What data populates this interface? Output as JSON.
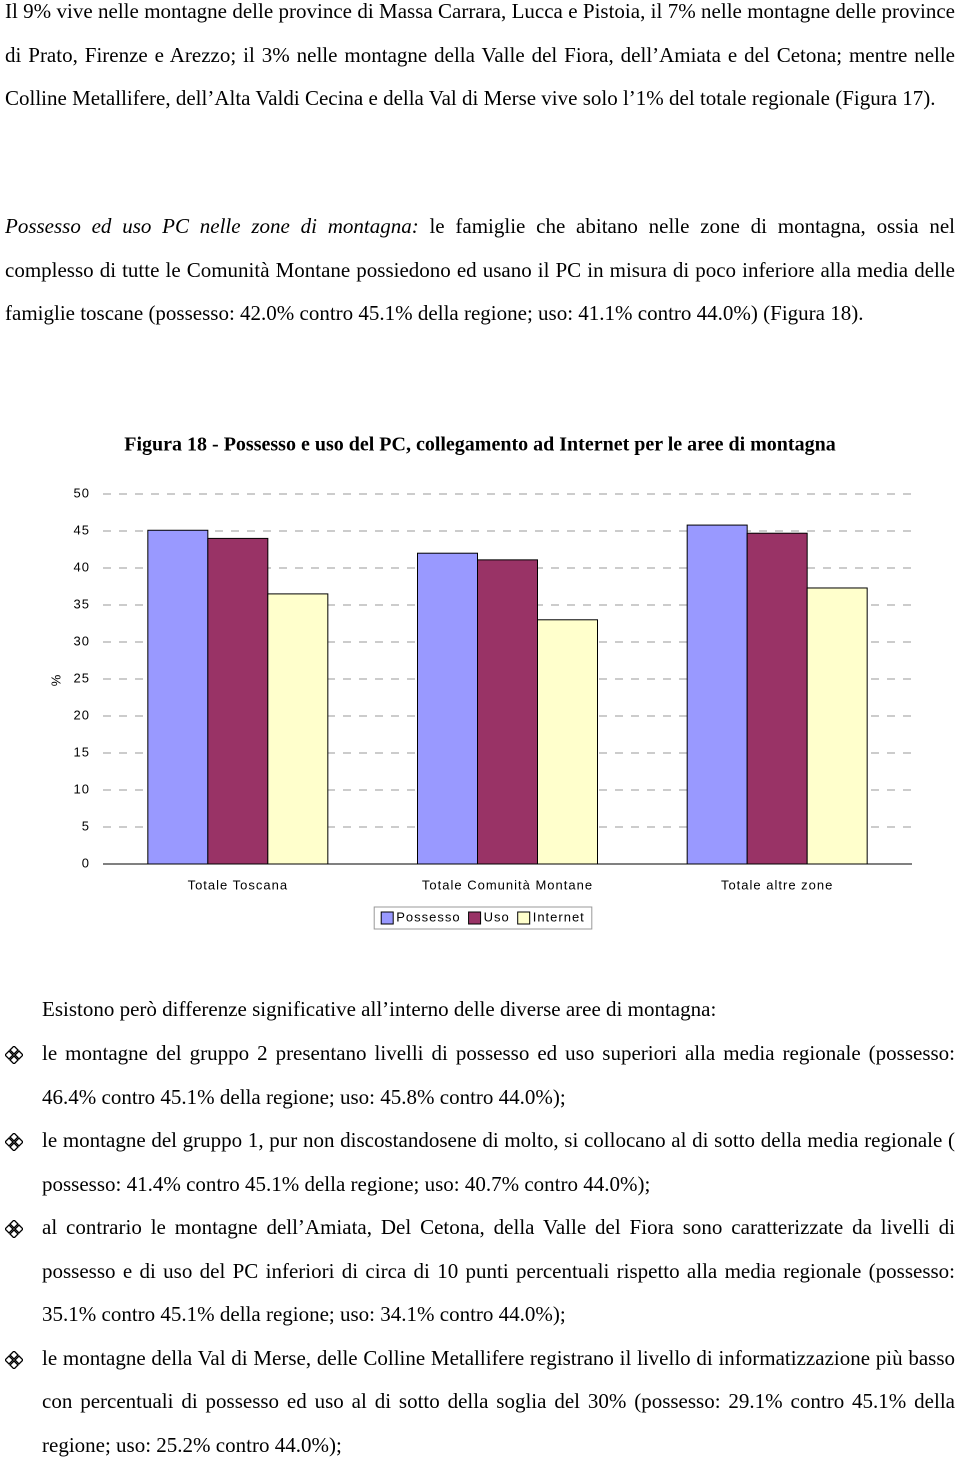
{
  "paragraphs": [
    "Il 9% vive nelle montagne delle province di Massa Carrara, Lucca e Pistoia, il 7% nelle montagne delle province di Prato, Firenze e Arezzo; il 3% nelle montagne della Valle del Fiora, dell’Amiata e del Cetona; mentre nelle Colline Metallifere, dell’Alta Valdi Cecina e della Val di Merse vive solo l’1% del totale regionale (Figura 17)."
  ],
  "section": {
    "heading": "Possesso ed uso PC nelle zone di montagna:",
    "text": " le famiglie che abitano nelle zone di montagna, ossia nel complesso di tutte le Comunità Montane possiedono ed usano il PC in misura di poco inferiore alla media delle famiglie toscane (possesso: 42.0% contro 45.1% della regione; uso: 41.1% contro 44.0%) (Figura 18)."
  },
  "chart_data": {
    "type": "bar",
    "title": "Figura 18 - Possesso e uso del PC, collegamento ad Internet per le aree di montagna",
    "y_label": "%",
    "categories": [
      "Totale Toscana",
      "Totale Comunità Montane",
      "Totale altre zone"
    ],
    "series": [
      {
        "name": "Possesso",
        "color": "#9999ff",
        "values": [
          45.1,
          42.0,
          45.8
        ]
      },
      {
        "name": "Uso",
        "color": "#993366",
        "values": [
          44.0,
          41.1,
          44.7
        ]
      },
      {
        "name": "Internet",
        "color": "#ffffcc",
        "values": [
          36.5,
          33.0,
          37.3
        ]
      }
    ],
    "ylim": [
      0,
      50
    ],
    "yticks": [
      0,
      5,
      10,
      15,
      20,
      25,
      30,
      35,
      40,
      45,
      50
    ],
    "grid": true,
    "legend": "bottom"
  },
  "intro": "Esistono però differenze significative all’interno delle diverse aree di montagna:",
  "bullets": [
    "le montagne del gruppo 2 presentano livelli di possesso ed uso superiori alla media regionale (possesso: 46.4% contro 45.1% della regione; uso: 45.8% contro 44.0%);",
    "le montagne del gruppo 1, pur non discostandosene di molto, si collocano al di sotto della media regionale ( possesso: 41.4% contro 45.1% della regione; uso: 40.7% contro 44.0%);",
    "al contrario le montagne dell’Amiata, Del Cetona, della Valle del Fiora sono caratterizzate da livelli di possesso e di uso del PC inferiori di circa di 10 punti percentuali rispetto alla media regionale  (possesso: 35.1% contro 45.1% della regione; uso: 34.1% contro 44.0%);",
    "le montagne della Val di Merse, delle Colline Metallifere registrano il livello di informatizzazione più basso con percentuali di possesso ed uso al di sotto della soglia del 30% (possesso: 29.1% contro 45.1% della regione; uso: 25.2% contro 44.0%);"
  ]
}
